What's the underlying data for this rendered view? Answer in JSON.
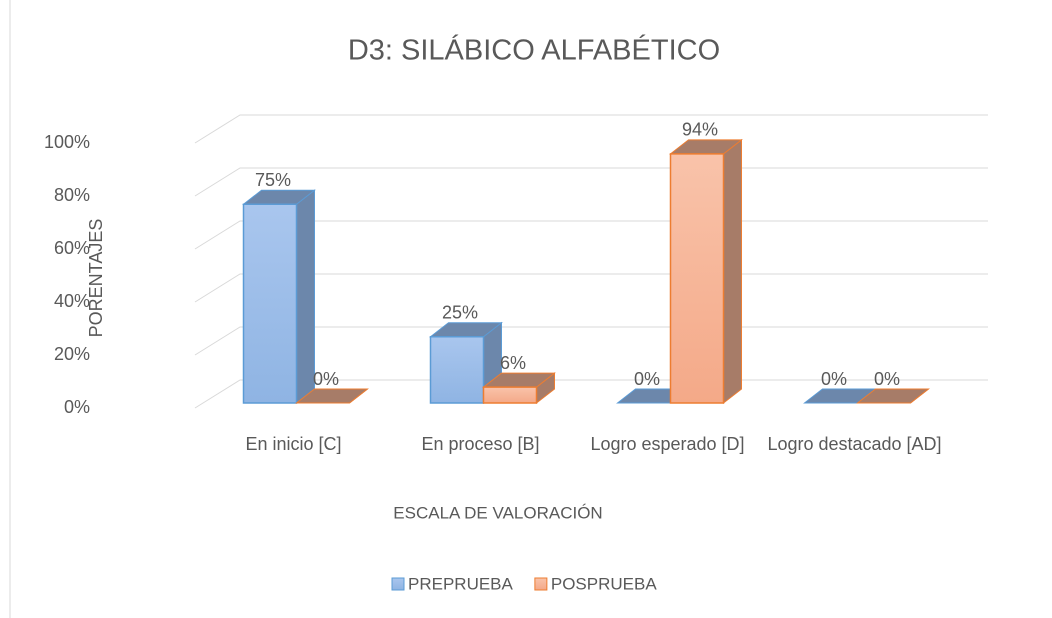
{
  "chart_data": {
    "type": "bar3d",
    "title": "D3: SILÁBICO ALFABÉTICO",
    "categories": [
      "En inicio [C]",
      "En proceso [B]",
      "Logro esperado [D]",
      "Logro destacado [AD]"
    ],
    "series": [
      {
        "name": "PREPRUEBA",
        "color": "#5b9bd5",
        "values": [
          75,
          25,
          0,
          0
        ],
        "value_labels": [
          "75%",
          "25%",
          "0%",
          "0%"
        ]
      },
      {
        "name": "POSPRUEBA",
        "color": "#ed7d31",
        "values": [
          0,
          6,
          94,
          0
        ],
        "value_labels": [
          "0%",
          "6%",
          "94%",
          "0%"
        ]
      }
    ],
    "ylim": [
      0,
      100
    ],
    "yticks": [
      {
        "value": 0,
        "label": "0%"
      },
      {
        "value": 20,
        "label": "20%"
      },
      {
        "value": 40,
        "label": "40%"
      },
      {
        "value": 60,
        "label": "60%"
      },
      {
        "value": 80,
        "label": "80%"
      },
      {
        "value": 100,
        "label": "100%"
      }
    ],
    "ylabel": "PORENTAJES",
    "xlabel": "ESCALA DE VALORACIÓN",
    "grid": true,
    "legend": "bottom"
  }
}
